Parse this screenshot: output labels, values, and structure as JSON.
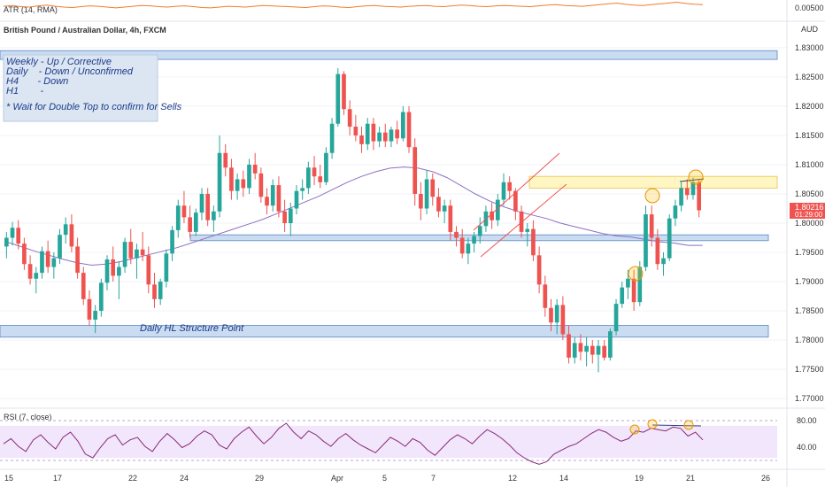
{
  "header": {
    "atr_label": "ATR (14, RMA)",
    "instrument": "British Pound / Australian Dollar, 4h, FXCM",
    "currency": "AUD"
  },
  "notes": {
    "lines": [
      "Weekly - Up / Corrective",
      "Daily    - Down / Unconfirmed",
      "H4       - Down",
      "H1        -"
    ],
    "footer": "* Wait for Double Top to confirm for Sells"
  },
  "zones": {
    "structure_label": "Daily HL Structure Point"
  },
  "price_tag": {
    "value": "1.80216",
    "countdown": "01:29:00"
  },
  "rsi_label": "RSI (7, close)",
  "colors": {
    "bull": "#26a69a",
    "bear": "#ef5350",
    "ma": "#8e6fc4",
    "atr": "#ef7d2b",
    "rsi": "#8a2a7a",
    "zone_blue": "#c9dcf1",
    "zone_yellow": "#fff6c4",
    "rsi_band": "#f1e6fb"
  },
  "chart_data": [
    {
      "type": "candlestick",
      "title": "British Pound / Australian Dollar, 4h, FXCM",
      "y_axis_ticks": [
        "1.83000",
        "1.82500",
        "1.82000",
        "1.81500",
        "1.81000",
        "1.80500",
        "1.80000",
        "1.79500",
        "1.79000",
        "1.78500",
        "1.78000",
        "1.77500",
        "1.77000"
      ],
      "ylim": [
        1.7685,
        1.8315
      ],
      "x_axis_ticks": [
        "15",
        "17",
        "22",
        "24",
        "29",
        "Apr",
        "5",
        "7",
        "12",
        "14",
        "19",
        "21",
        "26"
      ],
      "last_price": 1.80216,
      "ohlc": [
        [
          1.796,
          1.7985,
          1.794,
          1.7975
        ],
        [
          1.7975,
          1.8002,
          1.7962,
          1.7992
        ],
        [
          1.7992,
          1.8005,
          1.7955,
          1.7965
        ],
        [
          1.7965,
          1.7975,
          1.792,
          1.793
        ],
        [
          1.793,
          1.7945,
          1.7895,
          1.7905
        ],
        [
          1.7905,
          1.7925,
          1.788,
          1.7915
        ],
        [
          1.7915,
          1.796,
          1.7905,
          1.7952
        ],
        [
          1.7952,
          1.797,
          1.7915,
          1.7925
        ],
        [
          1.7925,
          1.795,
          1.7905,
          1.794
        ],
        [
          1.794,
          1.799,
          1.793,
          1.798
        ],
        [
          1.798,
          1.801,
          1.7965,
          1.7998
        ],
        [
          1.7998,
          1.8015,
          1.795,
          1.796
        ],
        [
          1.796,
          1.7975,
          1.7905,
          1.7915
        ],
        [
          1.7915,
          1.7925,
          1.786,
          1.787
        ],
        [
          1.787,
          1.7885,
          1.7825,
          1.7835
        ],
        [
          1.7835,
          1.786,
          1.7812,
          1.785
        ],
        [
          1.785,
          1.7905,
          1.784,
          1.7898
        ],
        [
          1.7898,
          1.7945,
          1.7885,
          1.7938
        ],
        [
          1.7938,
          1.796,
          1.79,
          1.791
        ],
        [
          1.791,
          1.7935,
          1.787,
          1.7925
        ],
        [
          1.7925,
          1.7975,
          1.7915,
          1.7968
        ],
        [
          1.7968,
          1.799,
          1.793,
          1.794
        ],
        [
          1.794,
          1.7965,
          1.7905,
          1.7955
        ],
        [
          1.7955,
          1.7985,
          1.7935,
          1.7945
        ],
        [
          1.7945,
          1.796,
          1.788,
          1.7895
        ],
        [
          1.7895,
          1.7915,
          1.7855,
          1.787
        ],
        [
          1.787,
          1.7905,
          1.786,
          1.79
        ],
        [
          1.79,
          1.7955,
          1.789,
          1.7948
        ],
        [
          1.7948,
          1.7995,
          1.7935,
          1.7988
        ],
        [
          1.7988,
          1.804,
          1.7975,
          1.803
        ],
        [
          1.803,
          1.8055,
          1.8,
          1.801
        ],
        [
          1.801,
          1.803,
          1.7975,
          1.7985
        ],
        [
          1.7985,
          1.8025,
          1.7978,
          1.8018
        ],
        [
          1.8018,
          1.806,
          1.8005,
          1.805
        ],
        [
          1.805,
          1.806,
          1.7995,
          1.8005
        ],
        [
          1.8005,
          1.803,
          1.7985,
          1.802
        ],
        [
          1.802,
          1.815,
          1.801,
          1.812
        ],
        [
          1.812,
          1.8135,
          1.808,
          1.8095
        ],
        [
          1.8095,
          1.811,
          1.804,
          1.8055
        ],
        [
          1.8055,
          1.8085,
          1.804,
          1.8075
        ],
        [
          1.8075,
          1.809,
          1.8045,
          1.806
        ],
        [
          1.806,
          1.811,
          1.805,
          1.81
        ],
        [
          1.81,
          1.812,
          1.8075,
          1.8085
        ],
        [
          1.8085,
          1.8095,
          1.8035,
          1.8045
        ],
        [
          1.8045,
          1.806,
          1.8015,
          1.803
        ],
        [
          1.803,
          1.8075,
          1.802,
          1.8065
        ],
        [
          1.8065,
          1.808,
          1.801,
          1.802
        ],
        [
          1.802,
          1.804,
          1.7985,
          1.8
        ],
        [
          1.8,
          1.8035,
          1.7978,
          1.8025
        ],
        [
          1.8025,
          1.8065,
          1.8015,
          1.8055
        ],
        [
          1.8055,
          1.8075,
          1.804,
          1.806
        ],
        [
          1.806,
          1.8105,
          1.805,
          1.8095
        ],
        [
          1.8095,
          1.8115,
          1.8065,
          1.808
        ],
        [
          1.808,
          1.81,
          1.806,
          1.807
        ],
        [
          1.807,
          1.813,
          1.8065,
          1.812
        ],
        [
          1.812,
          1.818,
          1.811,
          1.817
        ],
        [
          1.817,
          1.8265,
          1.8165,
          1.8255
        ],
        [
          1.8255,
          1.826,
          1.8185,
          1.8195
        ],
        [
          1.8195,
          1.821,
          1.815,
          1.8165
        ],
        [
          1.8165,
          1.8185,
          1.814,
          1.815
        ],
        [
          1.815,
          1.8165,
          1.812,
          1.8135
        ],
        [
          1.8135,
          1.818,
          1.8125,
          1.817
        ],
        [
          1.817,
          1.818,
          1.8125,
          1.814
        ],
        [
          1.814,
          1.8165,
          1.813,
          1.8155
        ],
        [
          1.8155,
          1.817,
          1.813,
          1.814
        ],
        [
          1.814,
          1.8165,
          1.813,
          1.816
        ],
        [
          1.816,
          1.8175,
          1.8135,
          1.8145
        ],
        [
          1.8145,
          1.82,
          1.814,
          1.819
        ],
        [
          1.819,
          1.82,
          1.812,
          1.813
        ],
        [
          1.813,
          1.8145,
          1.803,
          1.805
        ],
        [
          1.805,
          1.807,
          1.8005,
          1.8025
        ],
        [
          1.8025,
          1.809,
          1.8015,
          1.8075
        ],
        [
          1.8075,
          1.8085,
          1.803,
          1.8045
        ],
        [
          1.8045,
          1.806,
          1.801,
          1.802
        ],
        [
          1.802,
          1.804,
          1.8,
          1.803
        ],
        [
          1.803,
          1.804,
          1.797,
          1.7985
        ],
        [
          1.7985,
          1.7995,
          1.796,
          1.7975
        ],
        [
          1.7975,
          1.799,
          1.794,
          1.7948
        ],
        [
          1.7948,
          1.7975,
          1.793,
          1.7965
        ],
        [
          1.7965,
          1.7985,
          1.795,
          1.7978
        ],
        [
          1.7978,
          1.801,
          1.7965,
          1.7995
        ],
        [
          1.7995,
          1.803,
          1.7985,
          1.802
        ],
        [
          1.802,
          1.8035,
          1.799,
          1.8005
        ],
        [
          1.8005,
          1.805,
          1.7995,
          1.804
        ],
        [
          1.804,
          1.8085,
          1.803,
          1.807
        ],
        [
          1.807,
          1.808,
          1.804,
          1.8055
        ],
        [
          1.8055,
          1.806,
          1.8005,
          1.802
        ],
        [
          1.802,
          1.803,
          1.7975,
          1.7985
        ],
        [
          1.7985,
          1.8,
          1.796,
          1.799
        ],
        [
          1.799,
          1.8005,
          1.7935,
          1.7945
        ],
        [
          1.7945,
          1.796,
          1.788,
          1.7895
        ],
        [
          1.7895,
          1.791,
          1.784,
          1.7855
        ],
        [
          1.7855,
          1.787,
          1.7815,
          1.783
        ],
        [
          1.783,
          1.787,
          1.781,
          1.786
        ],
        [
          1.786,
          1.7875,
          1.78,
          1.781
        ],
        [
          1.781,
          1.7825,
          1.776,
          1.777
        ],
        [
          1.777,
          1.7805,
          1.776,
          1.7795
        ],
        [
          1.7795,
          1.781,
          1.7765,
          1.778
        ],
        [
          1.778,
          1.7805,
          1.7755,
          1.779
        ],
        [
          1.779,
          1.78,
          1.776,
          1.7775
        ],
        [
          1.7775,
          1.78,
          1.7745,
          1.779
        ],
        [
          1.779,
          1.78,
          1.7765,
          1.777
        ],
        [
          1.777,
          1.782,
          1.7765,
          1.7815
        ],
        [
          1.7815,
          1.787,
          1.7808,
          1.7862
        ],
        [
          1.7862,
          1.79,
          1.7855,
          1.789
        ],
        [
          1.789,
          1.792,
          1.787,
          1.7905
        ],
        [
          1.7905,
          1.792,
          1.785,
          1.7865
        ],
        [
          1.7865,
          1.7935,
          1.7858,
          1.7925
        ],
        [
          1.7925,
          1.803,
          1.7918,
          1.8015
        ],
        [
          1.8015,
          1.803,
          1.796,
          1.7975
        ],
        [
          1.7975,
          1.799,
          1.792,
          1.793
        ],
        [
          1.793,
          1.795,
          1.791,
          1.794
        ],
        [
          1.794,
          1.8015,
          1.7935,
          1.8008
        ],
        [
          1.8008,
          1.804,
          1.7995,
          1.803
        ],
        [
          1.803,
          1.807,
          1.802,
          1.806
        ],
        [
          1.806,
          1.8075,
          1.804,
          1.8048
        ],
        [
          1.8048,
          1.8078,
          1.804,
          1.807
        ],
        [
          1.807,
          1.8075,
          1.801,
          1.8022
        ]
      ],
      "moving_average": [
        1.7968,
        1.796,
        1.7952,
        1.7945,
        1.7938,
        1.7932,
        1.7928,
        1.793,
        1.7934,
        1.794,
        1.7946,
        1.7952,
        1.7958,
        1.7966,
        1.7974,
        1.7982,
        1.799,
        1.7998,
        1.8006,
        1.8016,
        1.8026,
        1.8036,
        1.8046,
        1.8058,
        1.807,
        1.808,
        1.8088,
        1.8094,
        1.8096,
        1.8094,
        1.8088,
        1.8078,
        1.8064,
        1.805,
        1.8038,
        1.8028,
        1.802,
        1.8014,
        1.8008,
        1.8,
        1.7994,
        1.7988,
        1.7982,
        1.7978,
        1.7976,
        1.7972,
        1.7968,
        1.7966,
        1.7962,
        1.7962
      ],
      "moving_average_start_index": 0,
      "moving_average_step": 2.4,
      "zones": [
        {
          "kind": "resistance",
          "from": 1.828,
          "to": 1.8295
        },
        {
          "kind": "support",
          "from": 1.797,
          "to": 1.798
        },
        {
          "kind": "structure",
          "from": 1.7805,
          "to": 1.7825,
          "label": "Daily HL Structure Point"
        },
        {
          "kind": "supply",
          "from": 1.806,
          "to": 1.808
        }
      ]
    },
    {
      "type": "line",
      "title": "RSI (7, close)",
      "y_axis_ticks": [
        "80.00",
        "40.00"
      ],
      "ylim": [
        15,
        95
      ],
      "band": [
        30,
        80
      ],
      "values": [
        52,
        60,
        48,
        40,
        58,
        66,
        54,
        44,
        62,
        70,
        56,
        36,
        30,
        46,
        60,
        66,
        50,
        58,
        62,
        48,
        40,
        56,
        68,
        58,
        46,
        52,
        64,
        72,
        66,
        50,
        44,
        60,
        70,
        78,
        64,
        52,
        62,
        76,
        84,
        70,
        60,
        72,
        66,
        56,
        48,
        60,
        68,
        58,
        50,
        44,
        38,
        50,
        62,
        56,
        48,
        60,
        54,
        42,
        34,
        46,
        58,
        66,
        60,
        52,
        64,
        74,
        68,
        60,
        50,
        38,
        30,
        24,
        20,
        24,
        36,
        42,
        48,
        52,
        60,
        68,
        74,
        70,
        62,
        56,
        60,
        72,
        70,
        76,
        74,
        72,
        78,
        76,
        64,
        70,
        58
      ]
    },
    {
      "type": "line",
      "title": "ATR (14, RMA)",
      "y_axis_ticks": [
        "0.00500"
      ],
      "values": [
        46,
        48,
        45,
        44,
        47,
        49,
        46,
        44,
        43,
        45,
        47,
        46,
        44,
        42,
        44,
        46,
        48,
        47,
        45,
        44,
        46,
        47,
        45,
        43,
        42,
        44,
        46,
        45,
        44,
        46,
        48,
        47,
        46,
        45,
        44,
        43,
        45,
        47,
        46,
        44,
        43,
        45,
        47,
        48,
        46,
        45,
        44,
        46,
        47,
        48,
        46,
        45,
        47,
        49,
        48,
        46,
        45,
        47,
        48,
        47,
        46,
        45,
        47,
        49,
        50,
        48,
        47,
        46,
        48,
        50,
        52,
        54,
        51,
        49,
        48,
        50,
        52,
        54,
        56,
        53,
        51,
        50
      ]
    }
  ]
}
